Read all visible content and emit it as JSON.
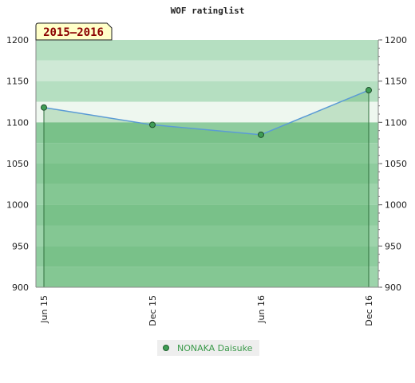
{
  "chart_data": {
    "type": "area",
    "title": "WOF ratinglist",
    "period_badge": "2015–2016",
    "categories": [
      "Jun 15",
      "Dec 15",
      "Jun 16",
      "Dec 16"
    ],
    "series": [
      {
        "name": "NONAKA Daisuke",
        "values": [
          1118,
          1097,
          1085,
          1139
        ]
      }
    ],
    "ylim": [
      900,
      1200
    ],
    "yticks": [
      900,
      950,
      1000,
      1050,
      1100,
      1150,
      1200
    ],
    "y_axis_both_sides": true,
    "grid": "horizontal bands",
    "legend_position": "bottom-center",
    "colors": {
      "line": "#5b9bd5",
      "area": "#3aa04a",
      "marker": "#3f9d55",
      "band_above_line": "#d4ecd9",
      "band_below_line": "#7cc48f",
      "badge_bg": "#ffffc8",
      "legend_text": "#3a9a4a"
    }
  }
}
